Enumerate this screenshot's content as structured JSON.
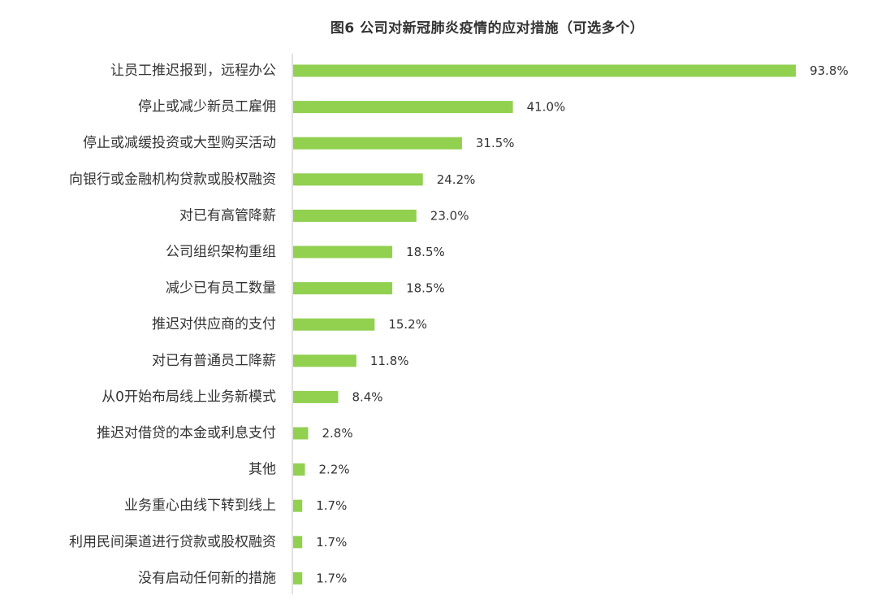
{
  "chart_data": {
    "type": "bar",
    "orientation": "horizontal",
    "title": "图6 公司对新冠肺炎疫情的应对措施（可选多个）",
    "categories": [
      "让员工推迟报到，远程办公",
      "停止或减少新员工雇佣",
      "停止或减缓投资或大型购买活动",
      "向银行或金融机构贷款或股权融资",
      "对已有高管降薪",
      "公司组织架构重组",
      "减少已有员工数量",
      "推迟对供应商的支付",
      "对已有普通员工降薪",
      "从0开始布局线上业务新模式",
      "推迟对借贷的本金或利息支付",
      "其他",
      "业务重心由线下转到线上",
      "利用民间渠道进行贷款或股权融资",
      "没有启动任何新的措施"
    ],
    "values": [
      93.8,
      41.0,
      31.5,
      24.2,
      23.0,
      18.5,
      18.5,
      15.2,
      11.8,
      8.4,
      2.8,
      2.2,
      1.7,
      1.7,
      1.7
    ],
    "value_labels": [
      "93.8%",
      "41.0%",
      "31.5%",
      "24.2%",
      "23.0%",
      "18.5%",
      "18.5%",
      "15.2%",
      "11.8%",
      "8.4%",
      "2.8%",
      "2.2%",
      "1.7%",
      "1.7%",
      "1.7%"
    ],
    "unit": "%",
    "xlim": [
      0,
      100
    ],
    "grid": false,
    "legend": "none",
    "bar_color": "#92d050",
    "text_color": "#333333",
    "axis_color": "#d9d9d9"
  }
}
